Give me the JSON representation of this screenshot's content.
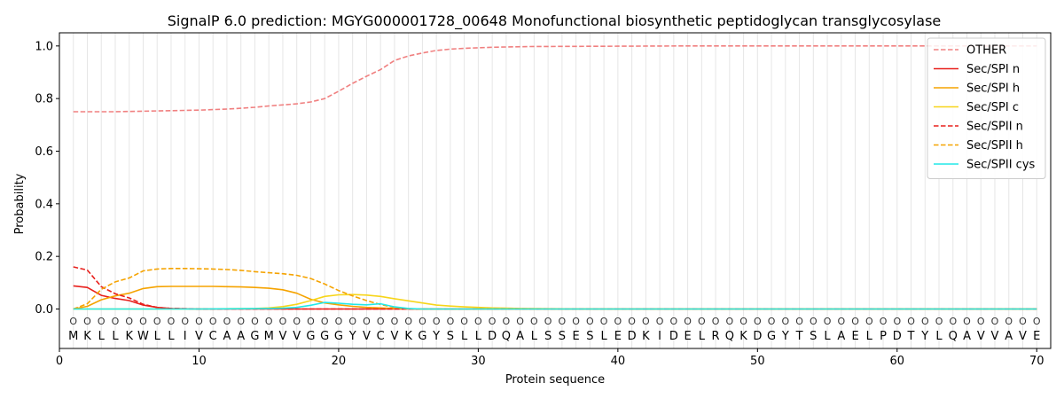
{
  "chart_data": {
    "type": "line",
    "title": "SignalP 6.0 prediction: MGYG000001728_00648 Monofunctional biosynthetic peptidoglycan transglycosylase",
    "xlabel": "Protein sequence",
    "ylabel": "Probability",
    "xlim": [
      0,
      71
    ],
    "ylim": [
      -0.15,
      1.05
    ],
    "x_ticks": [
      0,
      10,
      20,
      30,
      40,
      50,
      60,
      70
    ],
    "y_ticks": [
      0.0,
      0.2,
      0.4,
      0.6,
      0.8,
      1.0
    ],
    "x_tick_labels": [
      "0",
      "10",
      "20",
      "30",
      "40",
      "50",
      "60",
      "70"
    ],
    "y_tick_labels": [
      "0.0",
      "0.2",
      "0.4",
      "0.6",
      "0.8",
      "1.0"
    ],
    "legend_position": "top-right",
    "grid": "vertical lines at each residue",
    "sequence": [
      "M",
      "K",
      "L",
      "L",
      "K",
      "W",
      "L",
      "L",
      "I",
      "V",
      "C",
      "A",
      "A",
      "G",
      "M",
      "V",
      "V",
      "G",
      "G",
      "G",
      "Y",
      "V",
      "C",
      "V",
      "K",
      "G",
      "Y",
      "S",
      "L",
      "L",
      "D",
      "Q",
      "A",
      "L",
      "S",
      "S",
      "E",
      "S",
      "L",
      "E",
      "D",
      "K",
      "I",
      "D",
      "E",
      "L",
      "R",
      "Q",
      "K",
      "D",
      "G",
      "Y",
      "T",
      "S",
      "L",
      "A",
      "E",
      "L",
      "P",
      "D",
      "T",
      "Y",
      "L",
      "Q",
      "A",
      "V",
      "V",
      "A",
      "V",
      "E"
    ],
    "region_label": "O",
    "series": [
      {
        "name": "OTHER",
        "color": "#f08080",
        "dash": true,
        "x": [
          1,
          2,
          3,
          4,
          5,
          6,
          7,
          8,
          9,
          10,
          11,
          12,
          13,
          14,
          15,
          16,
          17,
          18,
          19,
          20,
          21,
          22,
          23,
          24,
          25,
          26,
          27,
          28,
          29,
          30,
          31,
          32,
          33,
          34,
          35,
          40,
          45,
          50,
          55,
          60,
          65,
          70
        ],
        "values": [
          0.75,
          0.75,
          0.75,
          0.75,
          0.751,
          0.752,
          0.753,
          0.754,
          0.755,
          0.756,
          0.758,
          0.76,
          0.763,
          0.767,
          0.772,
          0.776,
          0.78,
          0.787,
          0.8,
          0.828,
          0.858,
          0.885,
          0.91,
          0.945,
          0.962,
          0.973,
          0.983,
          0.988,
          0.991,
          0.993,
          0.995,
          0.996,
          0.997,
          0.998,
          0.998,
          0.999,
          1.0,
          1.0,
          1.0,
          1.0,
          1.0,
          1.0
        ]
      },
      {
        "name": "Sec/SPI n",
        "color": "#e8201c",
        "dash": false,
        "x": [
          1,
          2,
          3,
          4,
          5,
          6,
          7,
          8,
          10,
          15,
          20,
          25,
          30,
          70
        ],
        "values": [
          0.088,
          0.082,
          0.052,
          0.04,
          0.032,
          0.015,
          0.006,
          0.002,
          0.0,
          0.0,
          0.0,
          0.0,
          0.0,
          0.0
        ]
      },
      {
        "name": "Sec/SPI h",
        "color": "#f5a300",
        "dash": false,
        "x": [
          1,
          2,
          3,
          4,
          5,
          6,
          7,
          8,
          9,
          10,
          11,
          12,
          13,
          14,
          15,
          16,
          17,
          18,
          19,
          20,
          21,
          22,
          23,
          24,
          25,
          26,
          27,
          30,
          70
        ],
        "values": [
          0.0,
          0.01,
          0.035,
          0.05,
          0.06,
          0.078,
          0.085,
          0.086,
          0.086,
          0.086,
          0.086,
          0.085,
          0.084,
          0.082,
          0.079,
          0.073,
          0.06,
          0.037,
          0.023,
          0.016,
          0.01,
          0.006,
          0.004,
          0.002,
          0.001,
          0.0,
          0.0,
          0.0,
          0.0
        ]
      },
      {
        "name": "Sec/SPI c",
        "color": "#f7d51a",
        "dash": false,
        "x": [
          1,
          5,
          10,
          14,
          15,
          16,
          17,
          18,
          19,
          20,
          21,
          22,
          23,
          24,
          25,
          26,
          27,
          28,
          29,
          30,
          31,
          32,
          33,
          35,
          40,
          70
        ],
        "values": [
          0.0,
          0.0,
          0.0,
          0.002,
          0.004,
          0.009,
          0.018,
          0.032,
          0.048,
          0.054,
          0.055,
          0.053,
          0.048,
          0.039,
          0.031,
          0.023,
          0.015,
          0.011,
          0.008,
          0.006,
          0.004,
          0.003,
          0.002,
          0.001,
          0.0,
          0.0
        ]
      },
      {
        "name": "Sec/SPII n",
        "color": "#e8201c",
        "dash": true,
        "x": [
          1,
          2,
          3,
          4,
          5,
          6,
          7,
          8,
          10,
          15,
          20,
          25,
          30,
          70
        ],
        "values": [
          0.16,
          0.148,
          0.085,
          0.058,
          0.042,
          0.018,
          0.006,
          0.002,
          0.0,
          0.0,
          0.0,
          0.0,
          0.0,
          0.0
        ]
      },
      {
        "name": "Sec/SPII h",
        "color": "#f5a300",
        "dash": true,
        "x": [
          1,
          2,
          3,
          4,
          5,
          6,
          7,
          8,
          9,
          10,
          11,
          12,
          13,
          14,
          15,
          16,
          17,
          18,
          19,
          20,
          21,
          22,
          23,
          24,
          25,
          26,
          30,
          70
        ],
        "values": [
          0.0,
          0.02,
          0.075,
          0.103,
          0.118,
          0.145,
          0.152,
          0.154,
          0.154,
          0.153,
          0.152,
          0.15,
          0.147,
          0.142,
          0.138,
          0.134,
          0.128,
          0.116,
          0.095,
          0.07,
          0.05,
          0.032,
          0.017,
          0.006,
          0.001,
          0.0,
          0.0,
          0.0
        ]
      },
      {
        "name": "Sec/SPII cys",
        "color": "#22e8e8",
        "dash": false,
        "x": [
          1,
          10,
          15,
          16,
          17,
          18,
          19,
          20,
          21,
          22,
          23,
          24,
          25,
          26,
          27,
          30,
          70
        ],
        "values": [
          0.0,
          0.0,
          0.002,
          0.003,
          0.006,
          0.014,
          0.025,
          0.022,
          0.018,
          0.016,
          0.02,
          0.008,
          0.002,
          0.0,
          0.0,
          0.0,
          0.0
        ]
      }
    ]
  }
}
